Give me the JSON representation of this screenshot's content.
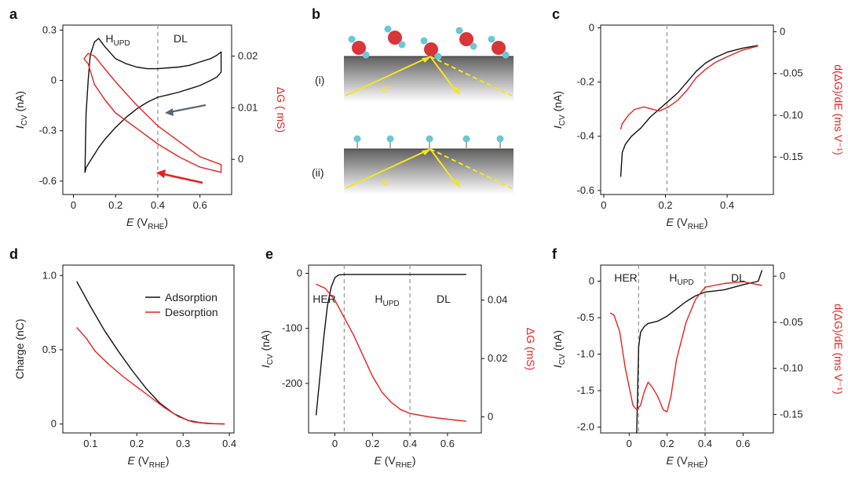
{
  "figure": {
    "colors": {
      "black": "#111111",
      "red": "#e8211d",
      "arrow_blue": "#5a6478",
      "arrow_red": "#e8211d",
      "yellow": "#f5e61a",
      "dashed": "#9a9a9a",
      "atom_o": "#d9363a",
      "atom_h": "#6cc7d6"
    }
  },
  "chart_data": [
    {
      "panel": "a",
      "type": "line",
      "xlabel": "E (VRHE)",
      "xlabel_main": "E",
      "xlabel_sub": "RHE",
      "ylabel": "ICV (nA)",
      "ylabel_main": "I",
      "ylabel_sub": "CV",
      "ylabel_unit": "(nA)",
      "ylabel2": "ΔG ( mS)",
      "xlim": [
        -0.05,
        0.75
      ],
      "ylim": [
        -0.68,
        0.33
      ],
      "y2lim": [
        -0.0068,
        0.026
      ],
      "xticks": [
        "0",
        "0.2",
        "0.4",
        "0.6"
      ],
      "xtick_vals": [
        0,
        0.2,
        0.4,
        0.6
      ],
      "yticks": [
        "0.3",
        "0",
        "-0.3",
        "-0.6"
      ],
      "ytick_vals": [
        0.3,
        0,
        -0.3,
        -0.6
      ],
      "y2ticks": [
        "0.02",
        "0.01",
        "0"
      ],
      "y2tick_vals": [
        0.02,
        0.01,
        0
      ],
      "annotations": [
        "HUPD",
        "DL"
      ],
      "vline": 0.4,
      "series": [
        {
          "name": "ICV",
          "axis": "left",
          "color": "black",
          "x": [
            0.055,
            0.06,
            0.07,
            0.08,
            0.1,
            0.12,
            0.15,
            0.2,
            0.25,
            0.3,
            0.35,
            0.4,
            0.45,
            0.5,
            0.55,
            0.6,
            0.65,
            0.68,
            0.7,
            0.7,
            0.68,
            0.65,
            0.6,
            0.55,
            0.5,
            0.45,
            0.4,
            0.35,
            0.3,
            0.25,
            0.2,
            0.15,
            0.12,
            0.1,
            0.08,
            0.07,
            0.06,
            0.055
          ],
          "values": [
            -0.55,
            -0.2,
            0.0,
            0.15,
            0.23,
            0.25,
            0.2,
            0.13,
            0.1,
            0.08,
            0.07,
            0.07,
            0.075,
            0.08,
            0.09,
            0.11,
            0.13,
            0.15,
            0.17,
            0.05,
            0.02,
            0.0,
            -0.03,
            -0.05,
            -0.07,
            -0.085,
            -0.1,
            -0.13,
            -0.17,
            -0.22,
            -0.28,
            -0.35,
            -0.4,
            -0.44,
            -0.48,
            -0.5,
            -0.52,
            -0.55
          ]
        },
        {
          "name": "ΔG",
          "axis": "right",
          "color": "red",
          "x": [
            0.05,
            0.07,
            0.1,
            0.15,
            0.2,
            0.3,
            0.4,
            0.5,
            0.6,
            0.7,
            0.7,
            0.6,
            0.5,
            0.4,
            0.3,
            0.2,
            0.15,
            0.1,
            0.07,
            0.05
          ],
          "values": [
            0.0195,
            0.0205,
            0.02,
            0.0175,
            0.015,
            0.0105,
            0.0065,
            0.0035,
            0.0005,
            -0.001,
            -0.0025,
            -0.0015,
            0.0005,
            0.003,
            0.006,
            0.009,
            0.0115,
            0.0145,
            0.0185,
            0.0195
          ]
        }
      ]
    },
    {
      "panel": "b",
      "type": "diagram",
      "labels": [
        "(i)",
        "(ii)"
      ],
      "electron_labels": [
        "e⁻",
        "e⁻"
      ]
    },
    {
      "panel": "c",
      "type": "line",
      "xlabel": "E (VRHE)",
      "xlabel_main": "E",
      "xlabel_sub": "RHE",
      "ylabel": "ICV (nA)",
      "ylabel_main": "I",
      "ylabel_sub": "CV",
      "ylabel_unit": "(nA)",
      "ylabel2": "d(ΔG)/dE (ms V⁻¹)",
      "xlim": [
        -0.01,
        0.55
      ],
      "ylim": [
        -0.615,
        0.01
      ],
      "y2lim": [
        -0.195,
        0.008
      ],
      "xticks": [
        "0",
        "0.2",
        "0.4"
      ],
      "xtick_vals": [
        0,
        0.2,
        0.4
      ],
      "yticks": [
        "0",
        "-0.2",
        "-0.4",
        "-0.6"
      ],
      "ytick_vals": [
        0,
        -0.2,
        -0.4,
        -0.6
      ],
      "y2ticks": [
        "0",
        "-0.05",
        "-0.10",
        "-0.15"
      ],
      "y2tick_vals": [
        0,
        -0.05,
        -0.1,
        -0.15
      ],
      "vline": 0.205,
      "series": [
        {
          "name": "ICV",
          "axis": "left",
          "color": "black",
          "x": [
            0.055,
            0.06,
            0.07,
            0.09,
            0.12,
            0.15,
            0.18,
            0.21,
            0.24,
            0.27,
            0.3,
            0.33,
            0.36,
            0.4,
            0.45,
            0.5
          ],
          "values": [
            -0.55,
            -0.46,
            -0.43,
            -0.4,
            -0.37,
            -0.33,
            -0.3,
            -0.27,
            -0.24,
            -0.2,
            -0.16,
            -0.13,
            -0.11,
            -0.09,
            -0.075,
            -0.065
          ]
        },
        {
          "name": "d(ΔG)/dE",
          "axis": "right",
          "color": "red",
          "x": [
            0.055,
            0.06,
            0.08,
            0.1,
            0.13,
            0.15,
            0.18,
            0.21,
            0.24,
            0.27,
            0.3,
            0.33,
            0.36,
            0.4,
            0.45,
            0.5
          ],
          "values": [
            -0.117,
            -0.11,
            -0.1,
            -0.093,
            -0.09,
            -0.092,
            -0.095,
            -0.09,
            -0.082,
            -0.07,
            -0.055,
            -0.045,
            -0.037,
            -0.03,
            -0.022,
            -0.017
          ]
        }
      ]
    },
    {
      "panel": "d",
      "type": "line",
      "xlabel": "E (VRHE)",
      "xlabel_main": "E",
      "xlabel_sub": "RHE",
      "ylabel": "Charge (nC)",
      "xlim": [
        0.04,
        0.41
      ],
      "ylim": [
        -0.06,
        1.07
      ],
      "xticks": [
        "0.1",
        "0.2",
        "0.3",
        "0.4"
      ],
      "xtick_vals": [
        0.1,
        0.2,
        0.3,
        0.4
      ],
      "yticks": [
        "1.0",
        "0.5",
        "0"
      ],
      "ytick_vals": [
        1.0,
        0.5,
        0
      ],
      "legend": [
        "Adsorption",
        "Desorption"
      ],
      "series": [
        {
          "name": "Adsorption",
          "color": "black",
          "x": [
            0.07,
            0.1,
            0.13,
            0.16,
            0.19,
            0.22,
            0.25,
            0.28,
            0.31,
            0.34,
            0.37,
            0.39
          ],
          "values": [
            0.96,
            0.79,
            0.63,
            0.49,
            0.36,
            0.24,
            0.14,
            0.07,
            0.025,
            0.008,
            0.002,
            0.0
          ]
        },
        {
          "name": "Desorption",
          "color": "red",
          "x": [
            0.07,
            0.09,
            0.11,
            0.14,
            0.17,
            0.2,
            0.23,
            0.26,
            0.29,
            0.32,
            0.35,
            0.39
          ],
          "values": [
            0.65,
            0.58,
            0.49,
            0.4,
            0.32,
            0.25,
            0.18,
            0.11,
            0.05,
            0.015,
            0.004,
            0.0
          ]
        }
      ]
    },
    {
      "panel": "e",
      "type": "line",
      "xlabel": "E (VRHE)",
      "xlabel_main": "E",
      "xlabel_sub": "RHE",
      "ylabel": "ICV (nA)",
      "ylabel_main": "I",
      "ylabel_sub": "CV",
      "ylabel_unit": "(nA)",
      "ylabel2": "ΔG (mS)",
      "xlim": [
        -0.14,
        0.78
      ],
      "ylim": [
        -290,
        15
      ],
      "y2lim": [
        -0.0055,
        0.052
      ],
      "xticks": [
        "0",
        "0.2",
        "0.4",
        "0.6"
      ],
      "xtick_vals": [
        0,
        0.2,
        0.4,
        0.6
      ],
      "yticks": [
        "0",
        "-100",
        "-200"
      ],
      "ytick_vals": [
        0,
        -100,
        -200
      ],
      "y2ticks": [
        "0.04",
        "0.02",
        "0"
      ],
      "y2tick_vals": [
        0.04,
        0.02,
        0
      ],
      "annotations": [
        "HER",
        "HUPD",
        "DL"
      ],
      "vlines": [
        0.05,
        0.4
      ],
      "series": [
        {
          "name": "ICV",
          "axis": "left",
          "color": "black",
          "x": [
            -0.1,
            -0.08,
            -0.06,
            -0.04,
            -0.02,
            0.0,
            0.02,
            0.05,
            0.1,
            0.2,
            0.4,
            0.7
          ],
          "values": [
            -258,
            -190,
            -120,
            -60,
            -25,
            -8,
            -3,
            -2,
            -2,
            -2,
            -2,
            -2
          ]
        },
        {
          "name": "ΔG",
          "axis": "right",
          "color": "red",
          "x": [
            -0.1,
            -0.05,
            0.0,
            0.05,
            0.1,
            0.15,
            0.2,
            0.25,
            0.3,
            0.35,
            0.4,
            0.5,
            0.6,
            0.7
          ],
          "values": [
            0.0455,
            0.044,
            0.04,
            0.034,
            0.028,
            0.021,
            0.014,
            0.0085,
            0.005,
            0.0025,
            0.0012,
            0.0,
            -0.0008,
            -0.0015
          ]
        }
      ]
    },
    {
      "panel": "f",
      "type": "line",
      "xlabel": "E (VRHE)",
      "xlabel_main": "E",
      "xlabel_sub": "RHE",
      "ylabel": "ICV (nA)",
      "ylabel_main": "I",
      "ylabel_sub": "CV",
      "ylabel_unit": "(nA)",
      "ylabel2": "d(ΔG)/dE (ms V⁻¹)",
      "xlim": [
        -0.15,
        0.76
      ],
      "ylim": [
        -2.08,
        0.22
      ],
      "y2lim": [
        -0.17,
        0.012
      ],
      "xticks": [
        "0",
        "0.2",
        "0.4",
        "0.6"
      ],
      "xtick_vals": [
        0,
        0.2,
        0.4,
        0.6
      ],
      "yticks": [
        "0",
        "-0.5",
        "-1.0",
        "-1.5",
        "-2.0"
      ],
      "ytick_vals": [
        0,
        -0.5,
        -1.0,
        -1.5,
        -2.0
      ],
      "y2ticks": [
        "0",
        "-0.05",
        "-0.10",
        "-0.15"
      ],
      "y2tick_vals": [
        0,
        -0.05,
        -0.1,
        -0.15
      ],
      "annotations": [
        "HER",
        "HUPD",
        "DL"
      ],
      "vlines": [
        0.05,
        0.4
      ],
      "series": [
        {
          "name": "ICV",
          "axis": "left",
          "color": "black",
          "x": [
            0.04,
            0.045,
            0.05,
            0.06,
            0.08,
            0.1,
            0.15,
            0.2,
            0.25,
            0.3,
            0.35,
            0.4,
            0.5,
            0.6,
            0.68,
            0.7
          ],
          "values": [
            -2.08,
            -1.5,
            -0.9,
            -0.7,
            -0.62,
            -0.58,
            -0.55,
            -0.48,
            -0.38,
            -0.28,
            -0.2,
            -0.15,
            -0.12,
            -0.05,
            0.0,
            0.15
          ]
        },
        {
          "name": "d(ΔG)/dE",
          "axis": "right",
          "color": "red",
          "x": [
            -0.1,
            -0.08,
            -0.05,
            -0.02,
            0.02,
            0.04,
            0.06,
            0.08,
            0.1,
            0.12,
            0.15,
            0.18,
            0.2,
            0.22,
            0.25,
            0.3,
            0.35,
            0.4,
            0.5,
            0.6,
            0.7
          ],
          "values": [
            -0.04,
            -0.042,
            -0.06,
            -0.1,
            -0.14,
            -0.145,
            -0.14,
            -0.125,
            -0.115,
            -0.12,
            -0.13,
            -0.145,
            -0.147,
            -0.13,
            -0.09,
            -0.05,
            -0.025,
            -0.012,
            -0.008,
            -0.006,
            -0.01
          ]
        }
      ]
    }
  ]
}
